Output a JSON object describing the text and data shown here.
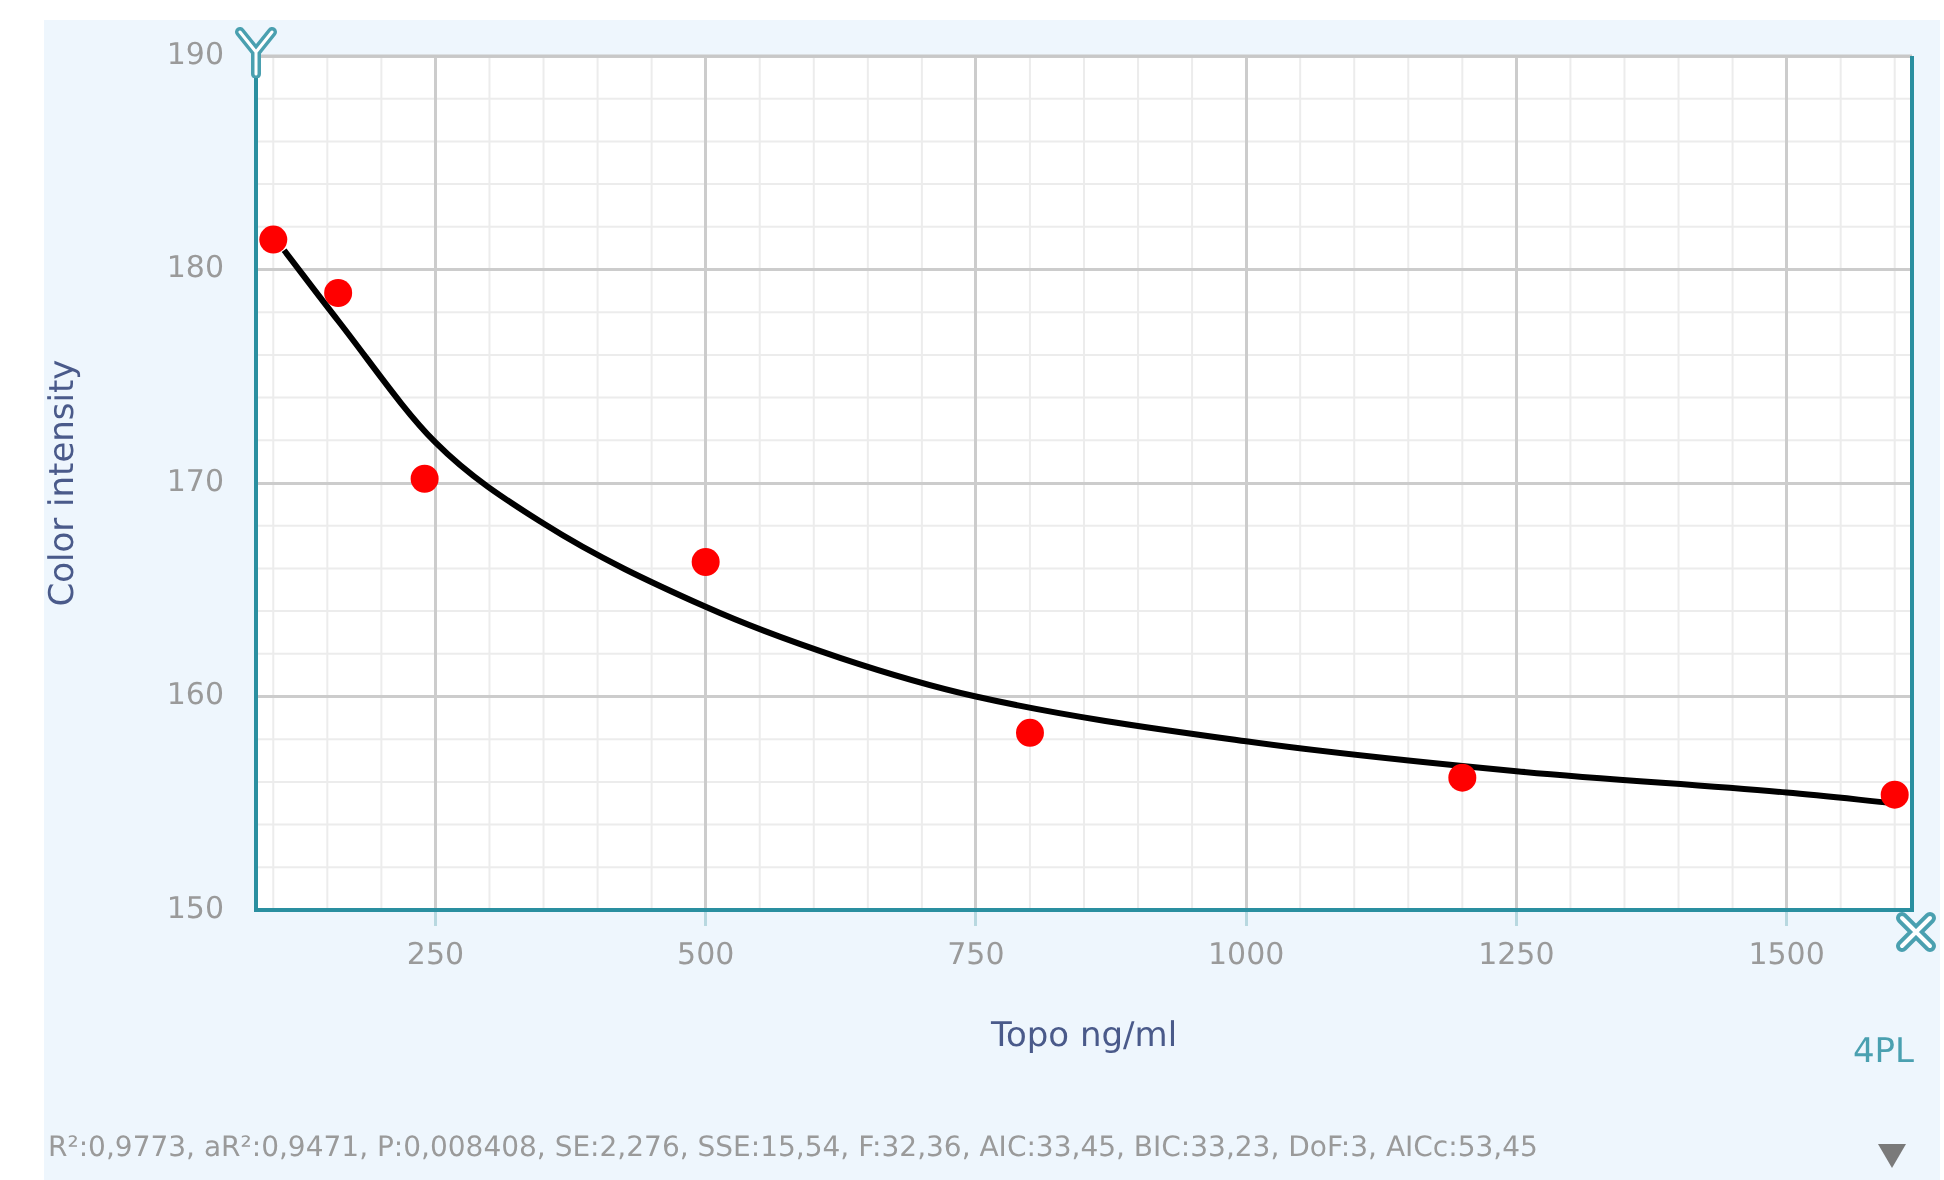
{
  "chart_data": {
    "type": "scatter",
    "xlabel": "Topo ng/ml",
    "ylabel": "Color intensity",
    "xlim": [
      84,
      1616
    ],
    "ylim": [
      150,
      190
    ],
    "xticks": [
      250,
      500,
      750,
      1000,
      1250,
      1500
    ],
    "yticks": [
      150,
      160,
      170,
      180,
      190
    ],
    "grid": true,
    "marker": "circle",
    "series": [
      {
        "type": "scatter",
        "color": "#ff0000",
        "x": [
          100,
          160,
          240,
          500,
          800,
          1200,
          1600
        ],
        "values": [
          181.4,
          178.9,
          170.2,
          166.3,
          158.3,
          156.2,
          155.4
        ]
      },
      {
        "type": "line",
        "color": "#000000",
        "marker": "none",
        "line_style": "solid",
        "x": [
          110,
          160,
          250,
          350,
          500,
          625,
          750,
          1000,
          1250,
          1500,
          1600
        ],
        "values": [
          180.9,
          177.6,
          171.9,
          168.1,
          164.2,
          161.8,
          160.0,
          157.9,
          156.5,
          155.5,
          155.0
        ]
      }
    ],
    "annotations": [
      "4PL",
      "R²:0,9773, aR²:0,9471, P:0,008408, SE:2,276, SSE:15,54, F:32,36, AIC:33,45, BIC:33,23, DoF:3, AICc:53,45"
    ]
  }
}
